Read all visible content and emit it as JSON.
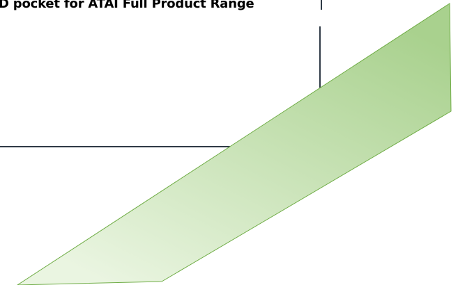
{
  "diagram": {
    "title": "D pocket for ATAI Full Product Range",
    "colors": {
      "frame_line": "#2f3a46",
      "arrow_fill_top": "#a9d18e",
      "arrow_fill_bottom": "#eaf5e1",
      "arrow_stroke": "#70ad47"
    }
  }
}
